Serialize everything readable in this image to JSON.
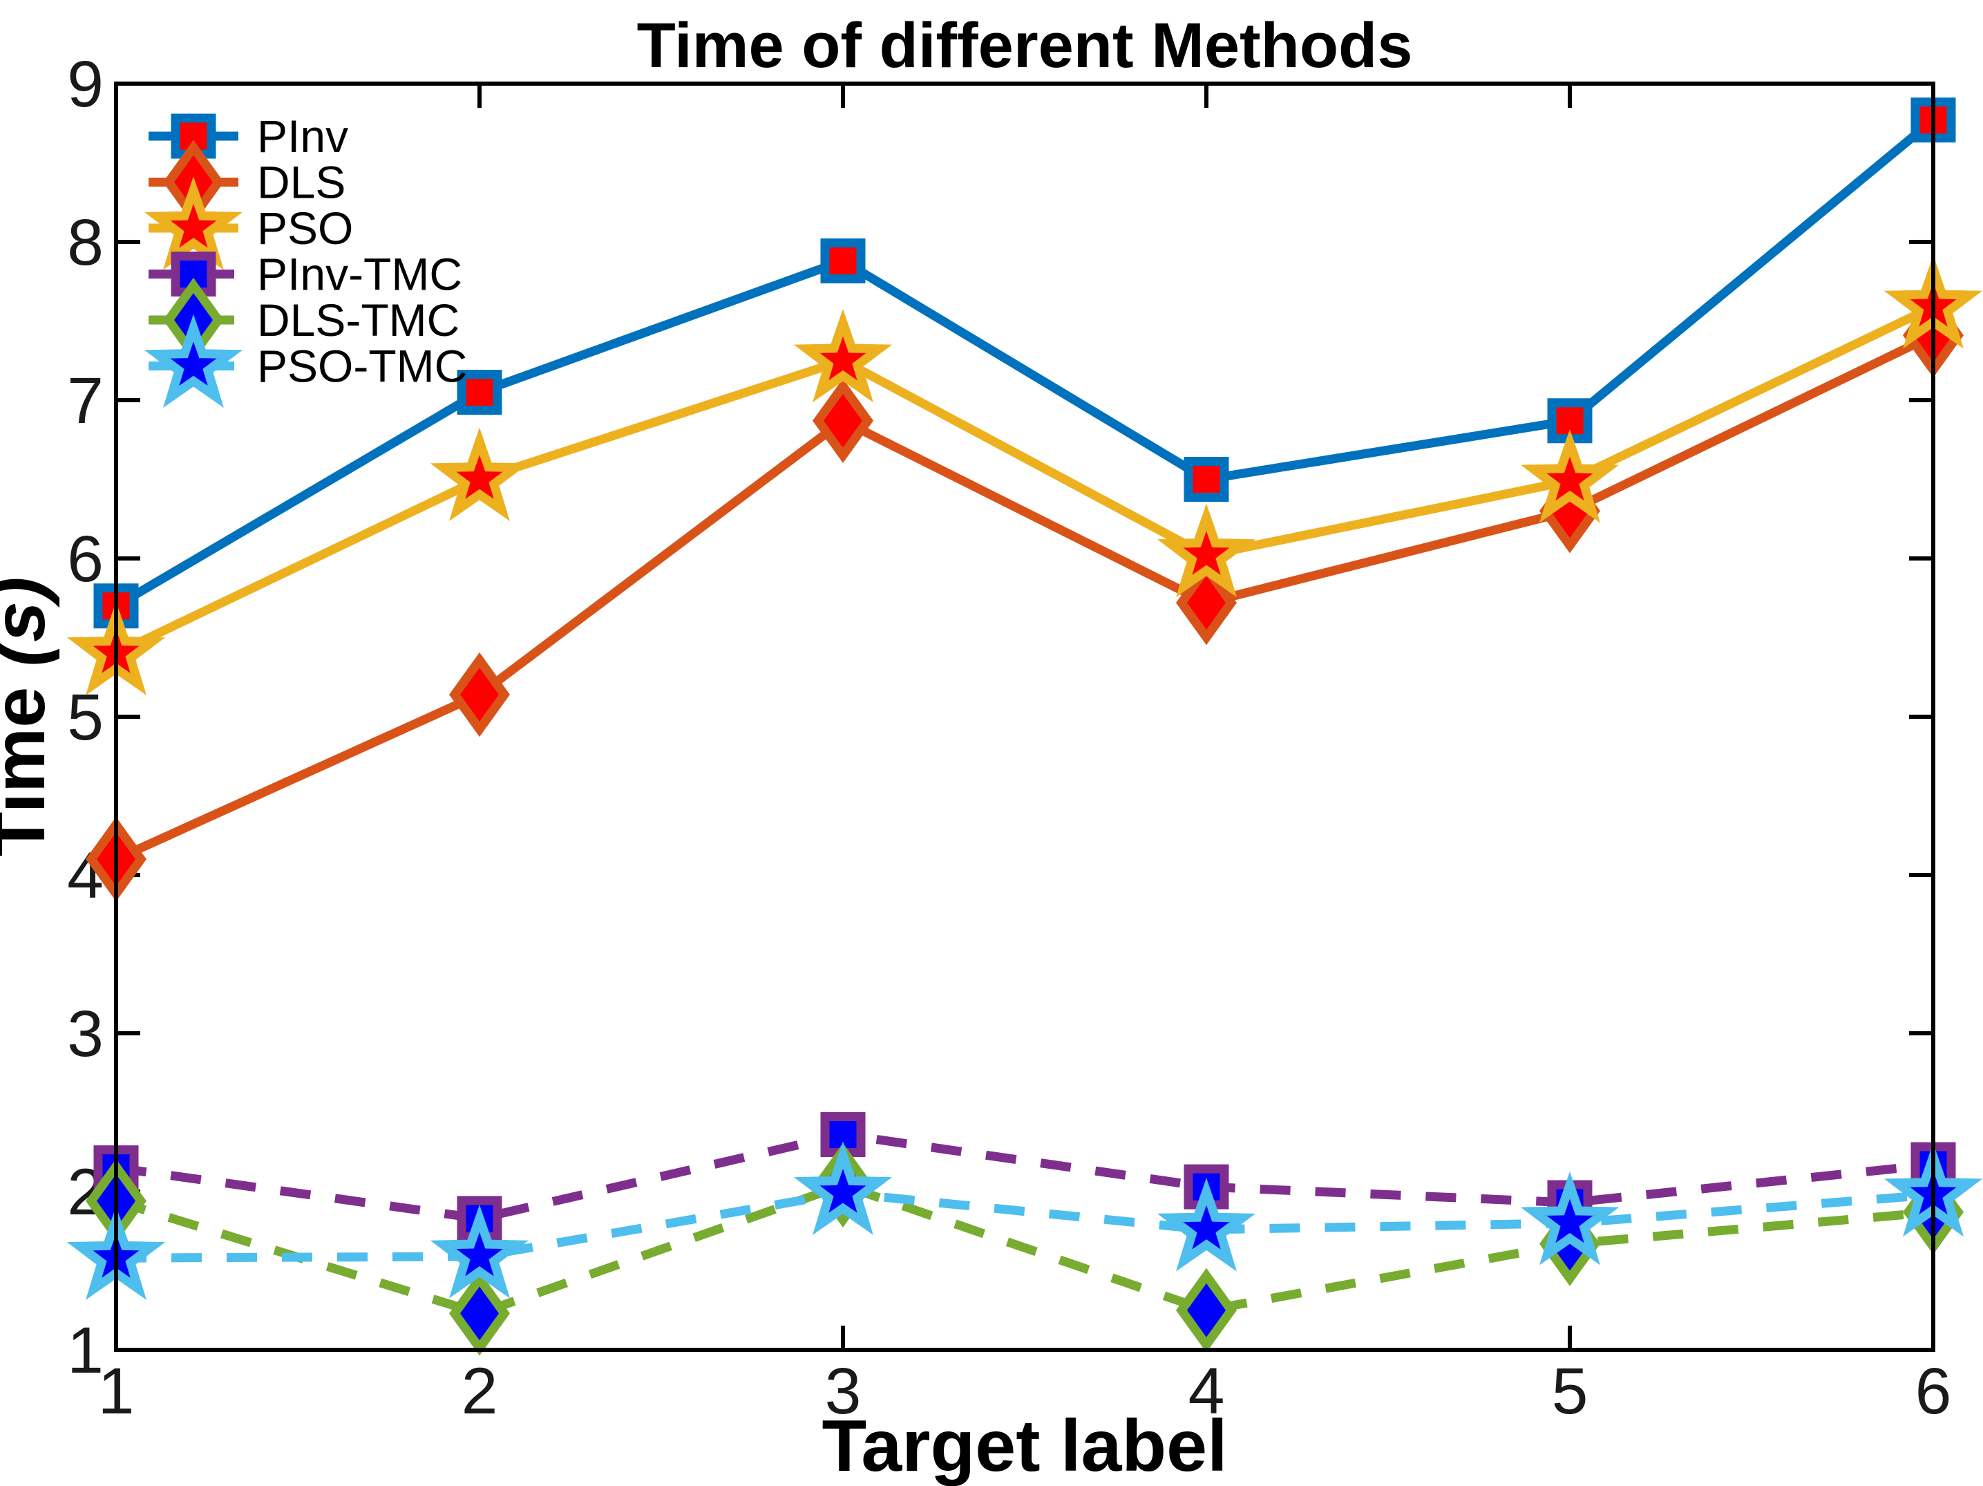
{
  "chart_data": {
    "type": "line",
    "title": "Time of different Methods",
    "xlabel": "Target label",
    "ylabel": "Time (s)",
    "x": [
      1,
      2,
      3,
      4,
      5,
      6
    ],
    "xlim": [
      1,
      6
    ],
    "ylim": [
      1,
      9
    ],
    "xticks": [
      "1",
      "2",
      "3",
      "4",
      "5",
      "6"
    ],
    "yticks": [
      "1",
      "2",
      "3",
      "4",
      "5",
      "6",
      "7",
      "8",
      "9"
    ],
    "grid": false,
    "legend_position": "top-left",
    "axis_color": "#000000",
    "series": [
      {
        "name": "PInv",
        "values": [
          5.7,
          7.05,
          7.88,
          6.5,
          6.87,
          8.77
        ],
        "line_color": "#0072BD",
        "marker": "square",
        "marker_fill": "#FF0000",
        "dashed": false
      },
      {
        "name": "DLS",
        "values": [
          4.1,
          5.14,
          6.87,
          5.72,
          6.3,
          7.41
        ],
        "line_color": "#D95319",
        "marker": "diamond",
        "marker_fill": "#FF0000",
        "dashed": false
      },
      {
        "name": "PSO",
        "values": [
          5.4,
          6.5,
          7.25,
          6.02,
          6.49,
          7.59
        ],
        "line_color": "#EDB120",
        "marker": "star",
        "marker_fill": "#FF0000",
        "dashed": false
      },
      {
        "name": "PInv-TMC",
        "values": [
          2.15,
          1.83,
          2.36,
          2.03,
          1.93,
          2.17
        ],
        "line_color": "#7E2F8E",
        "marker": "square",
        "marker_fill": "#0000FF",
        "dashed": true
      },
      {
        "name": "DLS-TMC",
        "values": [
          1.94,
          1.23,
          2.04,
          1.25,
          1.67,
          1.87
        ],
        "line_color": "#77AC30",
        "marker": "diamond",
        "marker_fill": "#0000FF",
        "dashed": true
      },
      {
        "name": "PSO-TMC",
        "values": [
          1.58,
          1.59,
          1.99,
          1.76,
          1.8,
          1.98
        ],
        "line_color": "#4DBEEE",
        "marker": "star",
        "marker_fill": "#0000FF",
        "dashed": true
      }
    ]
  }
}
